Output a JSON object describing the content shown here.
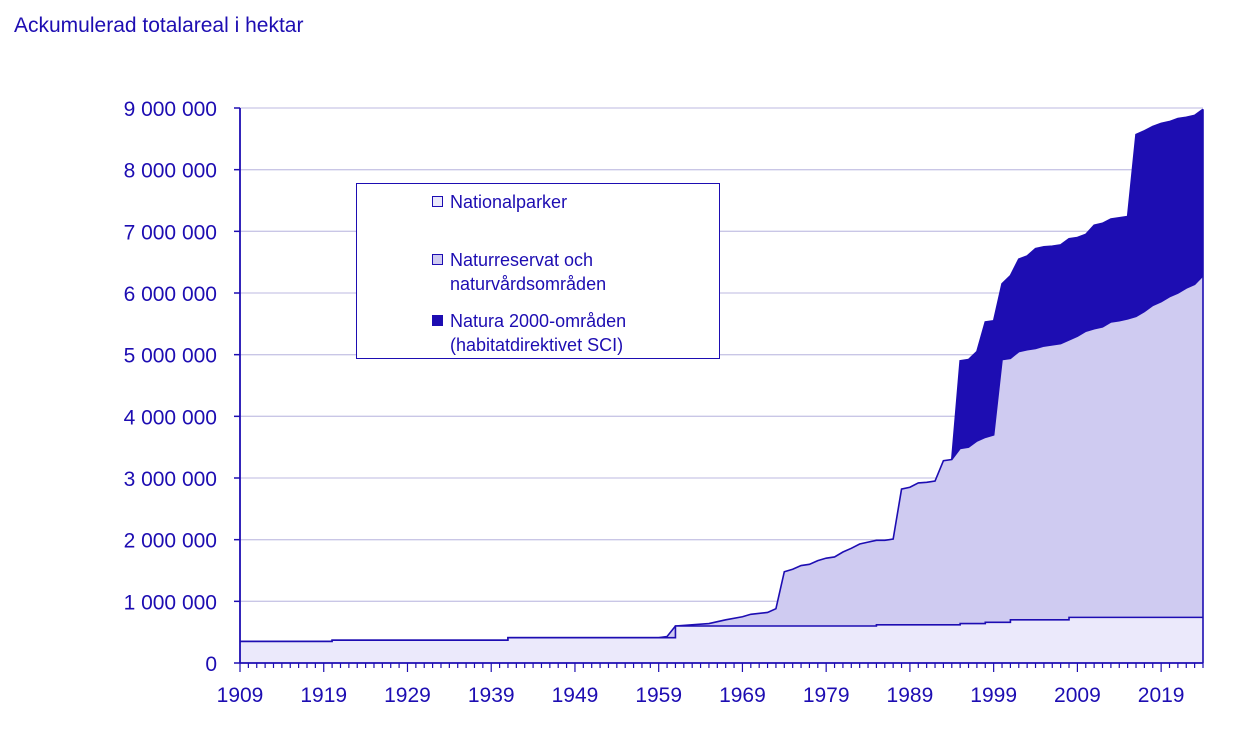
{
  "chart_data": {
    "type": "area",
    "stacked": true,
    "title": "Ackumulerad totalareal i hektar",
    "xlabel": "",
    "ylabel": "Ackumulerad totalareal i hektar",
    "xlim": [
      1909,
      2024
    ],
    "ylim": [
      0,
      9000000
    ],
    "x_ticks": [
      1909,
      1919,
      1929,
      1939,
      1949,
      1959,
      1969,
      1979,
      1989,
      1999,
      2009,
      2019
    ],
    "x_tick_labels": [
      "1909",
      "1919",
      "1929",
      "1939",
      "1949",
      "1959",
      "1969",
      "1979",
      "1989",
      "1999",
      "2009",
      "2019"
    ],
    "y_ticks": [
      0,
      1000000,
      2000000,
      3000000,
      4000000,
      5000000,
      6000000,
      7000000,
      8000000,
      9000000
    ],
    "y_tick_labels": [
      "0",
      "1 000 000",
      "2 000 000",
      "3 000 000",
      "4 000 000",
      "5 000 000",
      "6 000 000",
      "7 000 000",
      "8 000 000",
      "9 000 000"
    ],
    "grid": true,
    "legend_position": "upper-left-center",
    "colors": {
      "Nationalparker": "#ebe9fb",
      "Naturreservat och naturvårdsområden": "#cfcbf1",
      "Natura 2000-områden (habitatdirektivet SCI)": "#1d0db2",
      "axis": "#1d0db2",
      "grid": "#c9c6e6"
    },
    "series": [
      {
        "name": "Nationalparker",
        "legend_lines": [
          "Nationalparker"
        ],
        "points": [
          [
            1909,
            350000
          ],
          [
            1920,
            350000
          ],
          [
            1920,
            370000
          ],
          [
            1941,
            370000
          ],
          [
            1941,
            410000
          ],
          [
            1961,
            410000
          ],
          [
            1961,
            600000
          ],
          [
            1985,
            600000
          ],
          [
            1985,
            620000
          ],
          [
            1995,
            620000
          ],
          [
            1995,
            640000
          ],
          [
            1998,
            640000
          ],
          [
            1998,
            660000
          ],
          [
            2001,
            660000
          ],
          [
            2001,
            700000
          ],
          [
            2008,
            700000
          ],
          [
            2008,
            740000
          ],
          [
            2024,
            740000
          ]
        ]
      },
      {
        "name": "Naturreservat och naturvårdsområden",
        "legend_lines": [
          "Naturreservat och",
          "naturvårdsområden"
        ],
        "points": [
          [
            1909,
            350000
          ],
          [
            1920,
            350000
          ],
          [
            1920,
            370000
          ],
          [
            1941,
            370000
          ],
          [
            1941,
            410000
          ],
          [
            1959,
            410000
          ],
          [
            1960,
            430000
          ],
          [
            1961,
            600000
          ],
          [
            1965,
            640000
          ],
          [
            1967,
            700000
          ],
          [
            1969,
            750000
          ],
          [
            1970,
            790000
          ],
          [
            1972,
            820000
          ],
          [
            1973,
            880000
          ],
          [
            1974,
            1480000
          ],
          [
            1975,
            1520000
          ],
          [
            1976,
            1580000
          ],
          [
            1977,
            1600000
          ],
          [
            1978,
            1660000
          ],
          [
            1979,
            1700000
          ],
          [
            1980,
            1720000
          ],
          [
            1981,
            1800000
          ],
          [
            1982,
            1860000
          ],
          [
            1983,
            1930000
          ],
          [
            1984,
            1960000
          ],
          [
            1985,
            1990000
          ],
          [
            1986,
            1990000
          ],
          [
            1987,
            2010000
          ],
          [
            1988,
            2820000
          ],
          [
            1989,
            2850000
          ],
          [
            1990,
            2920000
          ],
          [
            1991,
            2930000
          ],
          [
            1992,
            2950000
          ],
          [
            1993,
            3280000
          ],
          [
            1994,
            3300000
          ],
          [
            1995,
            3480000
          ],
          [
            1996,
            3500000
          ],
          [
            1997,
            3600000
          ],
          [
            1998,
            3660000
          ],
          [
            1999,
            3700000
          ],
          [
            2000,
            4920000
          ],
          [
            2001,
            4940000
          ],
          [
            2002,
            5050000
          ],
          [
            2003,
            5080000
          ],
          [
            2004,
            5100000
          ],
          [
            2005,
            5140000
          ],
          [
            2006,
            5160000
          ],
          [
            2007,
            5180000
          ],
          [
            2008,
            5240000
          ],
          [
            2009,
            5300000
          ],
          [
            2010,
            5380000
          ],
          [
            2011,
            5420000
          ],
          [
            2012,
            5450000
          ],
          [
            2013,
            5530000
          ],
          [
            2014,
            5550000
          ],
          [
            2015,
            5580000
          ],
          [
            2016,
            5620000
          ],
          [
            2017,
            5700000
          ],
          [
            2018,
            5800000
          ],
          [
            2019,
            5860000
          ],
          [
            2020,
            5940000
          ],
          [
            2021,
            6000000
          ],
          [
            2022,
            6080000
          ],
          [
            2023,
            6140000
          ],
          [
            2024,
            6280000
          ]
        ]
      },
      {
        "name": "Natura 2000-områden (habitatdirektivet SCI)",
        "legend_lines": [
          "Natura 2000-områden",
          "(habitatdirektivet SCI)"
        ],
        "points": [
          [
            1994,
            3300000
          ],
          [
            1995,
            4900000
          ],
          [
            1996,
            4920000
          ],
          [
            1997,
            5050000
          ],
          [
            1998,
            5530000
          ],
          [
            1999,
            5550000
          ],
          [
            2000,
            6150000
          ],
          [
            2001,
            6280000
          ],
          [
            2002,
            6550000
          ],
          [
            2003,
            6600000
          ],
          [
            2004,
            6720000
          ],
          [
            2005,
            6750000
          ],
          [
            2006,
            6760000
          ],
          [
            2007,
            6780000
          ],
          [
            2008,
            6880000
          ],
          [
            2009,
            6900000
          ],
          [
            2010,
            6950000
          ],
          [
            2011,
            7100000
          ],
          [
            2012,
            7130000
          ],
          [
            2013,
            7200000
          ],
          [
            2014,
            7220000
          ],
          [
            2015,
            7240000
          ],
          [
            2016,
            8570000
          ],
          [
            2017,
            8630000
          ],
          [
            2018,
            8700000
          ],
          [
            2019,
            8750000
          ],
          [
            2020,
            8780000
          ],
          [
            2021,
            8830000
          ],
          [
            2022,
            8850000
          ],
          [
            2023,
            8880000
          ],
          [
            2024,
            8980000
          ]
        ]
      }
    ]
  }
}
